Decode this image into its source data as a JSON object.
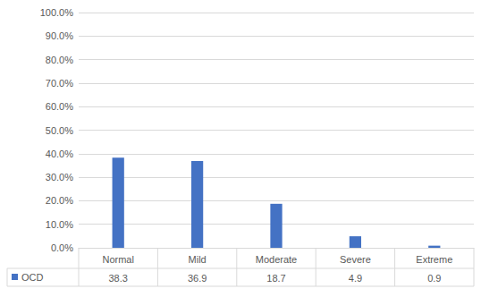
{
  "chart_data": {
    "type": "bar",
    "categories": [
      "Normal",
      "Mild",
      "Moderate",
      "Severe",
      "Extreme"
    ],
    "series": [
      {
        "name": "OCD",
        "color": "#4472c4",
        "values": [
          38.3,
          36.9,
          18.7,
          4.9,
          0.9
        ]
      }
    ],
    "ylim": [
      0,
      100
    ],
    "yticks": [
      {
        "value": 0,
        "label": "0.0%"
      },
      {
        "value": 10,
        "label": "10.0%"
      },
      {
        "value": 20,
        "label": "20.0%"
      },
      {
        "value": 30,
        "label": "30.0%"
      },
      {
        "value": 40,
        "label": "40.0%"
      },
      {
        "value": 50,
        "label": "50.0%"
      },
      {
        "value": 60,
        "label": "60.0%"
      },
      {
        "value": 70,
        "label": "70.0%"
      },
      {
        "value": 80,
        "label": "80.0%"
      },
      {
        "value": 90,
        "label": "90.0%"
      },
      {
        "value": 100,
        "label": "100.0%"
      }
    ],
    "grid": true
  }
}
